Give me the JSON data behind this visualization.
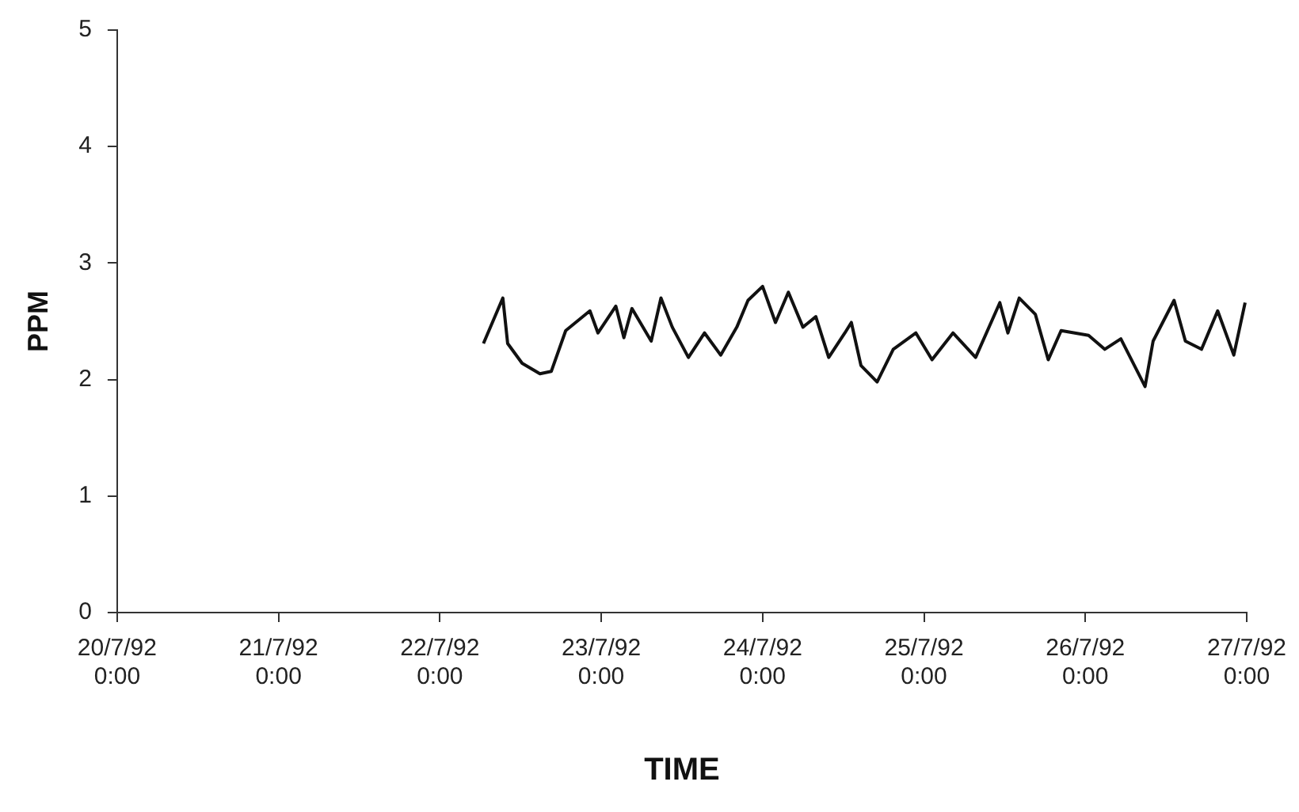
{
  "chart_data": {
    "type": "line",
    "xlabel": "TIME",
    "ylabel": "PPM",
    "x": [
      "1992-07-22T06:29",
      "1992-07-22T09:22",
      "1992-07-22T10:05",
      "1992-07-22T12:14",
      "1992-07-22T14:53",
      "1992-07-22T16:34",
      "1992-07-22T18:43",
      "1992-07-22T22:19",
      "1992-07-22T23:31",
      "1992-07-23T02:10",
      "1992-07-23T03:22",
      "1992-07-23T04:34",
      "1992-07-23T07:26",
      "1992-07-23T08:53",
      "1992-07-23T10:34",
      "1992-07-23T12:58",
      "1992-07-23T15:22",
      "1992-07-23T17:46",
      "1992-07-23T20:10",
      "1992-07-23T21:50",
      "1992-07-24T00:00",
      "1992-07-24T01:55",
      "1992-07-24T03:50",
      "1992-07-24T06:00",
      "1992-07-24T07:55",
      "1992-07-24T09:50",
      "1992-07-24T12:14",
      "1992-07-24T13:12",
      "1992-07-24T14:38",
      "1992-07-24T17:02",
      "1992-07-24T19:26",
      "1992-07-24T22:48",
      "1992-07-25T01:12",
      "1992-07-25T04:19",
      "1992-07-25T07:41",
      "1992-07-25T11:17",
      "1992-07-25T12:29",
      "1992-07-25T14:10",
      "1992-07-25T16:34",
      "1992-07-25T18:29",
      "1992-07-25T20:24",
      "1992-07-26T00:29",
      "1992-07-26T02:53",
      "1992-07-26T05:17",
      "1992-07-26T08:53",
      "1992-07-26T10:05",
      "1992-07-26T13:12",
      "1992-07-26T14:53",
      "1992-07-26T17:17",
      "1992-07-26T19:41",
      "1992-07-26T22:05",
      "1992-07-26T23:46"
    ],
    "series": [
      {
        "color": "#111111",
        "values": [
          2.31,
          2.7,
          2.31,
          2.14,
          2.05,
          2.07,
          2.42,
          2.59,
          2.4,
          2.63,
          2.36,
          2.61,
          2.33,
          2.7,
          2.45,
          2.19,
          2.4,
          2.21,
          2.45,
          2.68,
          2.8,
          2.49,
          2.75,
          2.45,
          2.54,
          2.19,
          2.4,
          2.49,
          2.12,
          1.98,
          2.26,
          2.4,
          2.17,
          2.4,
          2.19,
          2.66,
          2.4,
          2.7,
          2.56,
          2.17,
          2.42,
          2.38,
          2.26,
          2.35,
          1.94,
          2.33,
          2.68,
          2.33,
          2.26,
          2.59,
          2.21,
          2.66
        ]
      }
    ],
    "xlim": [
      "1992-07-20T00:00",
      "1992-07-27T00:00"
    ],
    "xticks": [
      {
        "value": "1992-07-20T00:00",
        "label": "20/7/92 0:00"
      },
      {
        "value": "1992-07-21T00:00",
        "label": "21/7/92 0:00"
      },
      {
        "value": "1992-07-22T00:00",
        "label": "22/7/92 0:00"
      },
      {
        "value": "1992-07-23T00:00",
        "label": "23/7/92 0:00"
      },
      {
        "value": "1992-07-24T00:00",
        "label": "24/7/92 0:00"
      },
      {
        "value": "1992-07-25T00:00",
        "label": "25/7/92 0:00"
      },
      {
        "value": "1992-07-26T00:00",
        "label": "26/7/92 0:00"
      },
      {
        "value": "1992-07-27T00:00",
        "label": "27/7/92 0:00"
      }
    ],
    "ylim": [
      0,
      5
    ],
    "yticks": [
      0,
      1,
      2,
      3,
      4,
      5
    ],
    "grid": false,
    "legend": false,
    "marker": "none",
    "line_style": "solid"
  }
}
